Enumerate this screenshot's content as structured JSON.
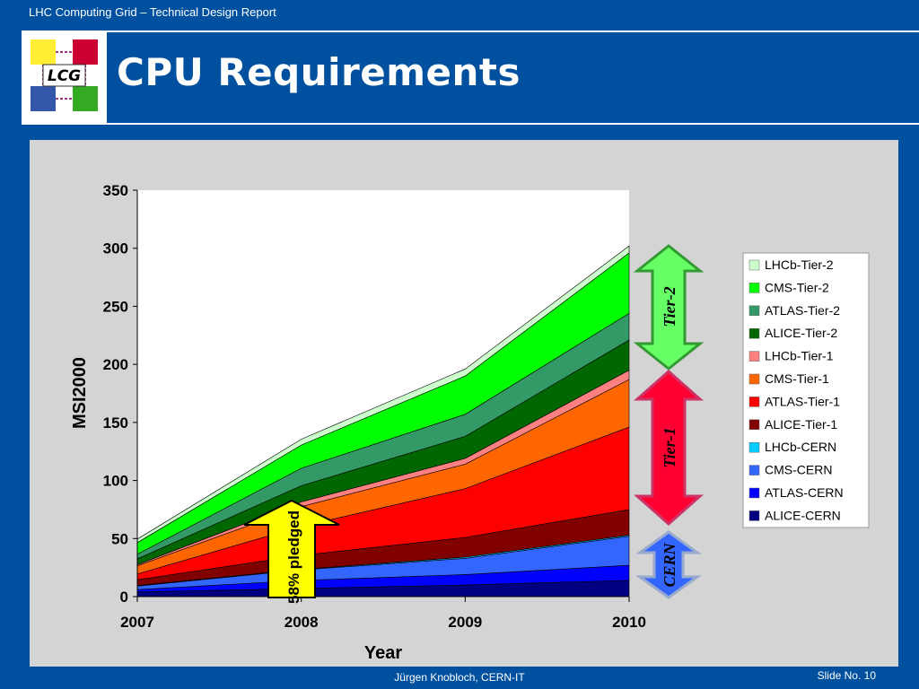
{
  "header": {
    "text": "LHC Computing Grid – Technical Design Report"
  },
  "logo": {
    "text": "LCG"
  },
  "title": "CPU Requirements",
  "footer": {
    "author": "Jürgen Knobloch, CERN-IT",
    "slide": "Slide No. 10"
  },
  "chart_data": {
    "type": "area",
    "stacked": true,
    "x": [
      "2007",
      "2008",
      "2009",
      "2010"
    ],
    "xlabel": "Year",
    "ylabel": "MSI2000",
    "ylim": [
      0,
      350
    ],
    "yticks": [
      0,
      50,
      100,
      150,
      200,
      250,
      300,
      350
    ],
    "series": [
      {
        "name": "ALICE-CERN",
        "color": "#000080",
        "values": [
          4,
          7,
          10,
          14
        ]
      },
      {
        "name": "ATLAS-CERN",
        "color": "#0000ff",
        "values": [
          2,
          7,
          9,
          13
        ]
      },
      {
        "name": "CMS-CERN",
        "color": "#3366ff",
        "values": [
          3,
          9,
          14,
          25
        ]
      },
      {
        "name": "LHCb-CERN",
        "color": "#00ccff",
        "values": [
          0.5,
          0.5,
          1,
          1
        ]
      },
      {
        "name": "ALICE-Tier-1",
        "color": "#800000",
        "values": [
          5,
          12,
          17,
          22
        ]
      },
      {
        "name": "ATLAS-Tier-1",
        "color": "#ff0000",
        "values": [
          5,
          25,
          42,
          71
        ]
      },
      {
        "name": "CMS-Tier-1",
        "color": "#ff6600",
        "values": [
          7,
          17,
          21,
          41
        ]
      },
      {
        "name": "LHCb-Tier-1",
        "color": "#ff8080",
        "values": [
          1,
          4,
          5,
          8
        ]
      },
      {
        "name": "ALICE-Tier-2",
        "color": "#006600",
        "values": [
          5,
          14,
          19,
          26
        ]
      },
      {
        "name": "ATLAS-Tier-2",
        "color": "#339966",
        "values": [
          4,
          15,
          19,
          23
        ]
      },
      {
        "name": "CMS-Tier-2",
        "color": "#00ff00",
        "values": [
          10,
          20,
          33,
          52
        ]
      },
      {
        "name": "LHCb-Tier-2",
        "color": "#ccffcc",
        "values": [
          3,
          5,
          6,
          6
        ]
      }
    ],
    "annotations": [
      {
        "text": "58% pledged"
      },
      {
        "text": "Tier-2"
      },
      {
        "text": "Tier-1"
      },
      {
        "text": "CERN"
      }
    ],
    "legend_position": "right"
  }
}
